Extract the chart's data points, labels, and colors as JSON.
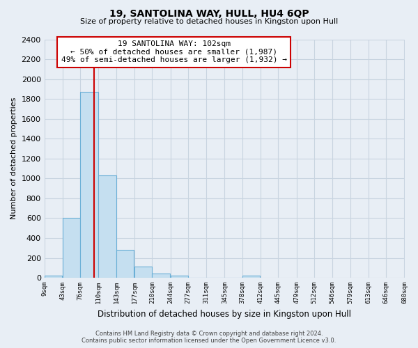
{
  "title": "19, SANTOLINA WAY, HULL, HU4 6QP",
  "subtitle": "Size of property relative to detached houses in Kingston upon Hull",
  "xlabel": "Distribution of detached houses by size in Kingston upon Hull",
  "ylabel": "Number of detached properties",
  "bar_left_edges": [
    9,
    43,
    76,
    110,
    143,
    177,
    210,
    244,
    277,
    311,
    345,
    378
  ],
  "bar_heights": [
    20,
    600,
    1870,
    1030,
    280,
    110,
    45,
    20,
    0,
    0,
    0,
    20
  ],
  "bin_width": 33,
  "bar_color": "#c5dff0",
  "bar_edge_color": "#6aafd6",
  "vline_x": 102,
  "vline_color": "#cc0000",
  "ylim": [
    0,
    2400
  ],
  "yticks": [
    0,
    200,
    400,
    600,
    800,
    1000,
    1200,
    1400,
    1600,
    1800,
    2000,
    2200,
    2400
  ],
  "xtick_labels": [
    "9sqm",
    "43sqm",
    "76sqm",
    "110sqm",
    "143sqm",
    "177sqm",
    "210sqm",
    "244sqm",
    "277sqm",
    "311sqm",
    "345sqm",
    "378sqm",
    "412sqm",
    "445sqm",
    "479sqm",
    "512sqm",
    "546sqm",
    "579sqm",
    "613sqm",
    "646sqm",
    "680sqm"
  ],
  "xtick_positions": [
    9,
    43,
    76,
    110,
    143,
    177,
    210,
    244,
    277,
    311,
    345,
    378,
    412,
    445,
    479,
    512,
    546,
    579,
    613,
    646,
    680
  ],
  "annotation_title": "19 SANTOLINA WAY: 102sqm",
  "annotation_line1": "← 50% of detached houses are smaller (1,987)",
  "annotation_line2": "49% of semi-detached houses are larger (1,932) →",
  "footer_line1": "Contains HM Land Registry data © Crown copyright and database right 2024.",
  "footer_line2": "Contains public sector information licensed under the Open Government Licence v3.0.",
  "bg_color": "#e8eef5",
  "grid_color": "#c8d4e0",
  "xlim_left": 9,
  "xlim_right": 680
}
